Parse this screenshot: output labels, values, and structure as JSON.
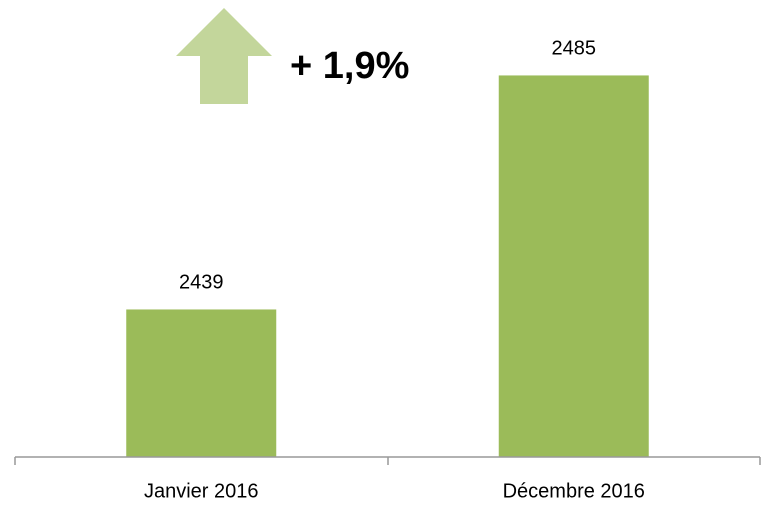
{
  "chart_data": {
    "type": "bar",
    "categories": [
      "Janvier 2016",
      "Décembre 2016"
    ],
    "values": [
      2439,
      2485
    ],
    "color": "#9bbb59",
    "ylim": [
      2410,
      2490
    ],
    "annotation": "+ 1,9%",
    "annotation_color": "#77933c"
  }
}
